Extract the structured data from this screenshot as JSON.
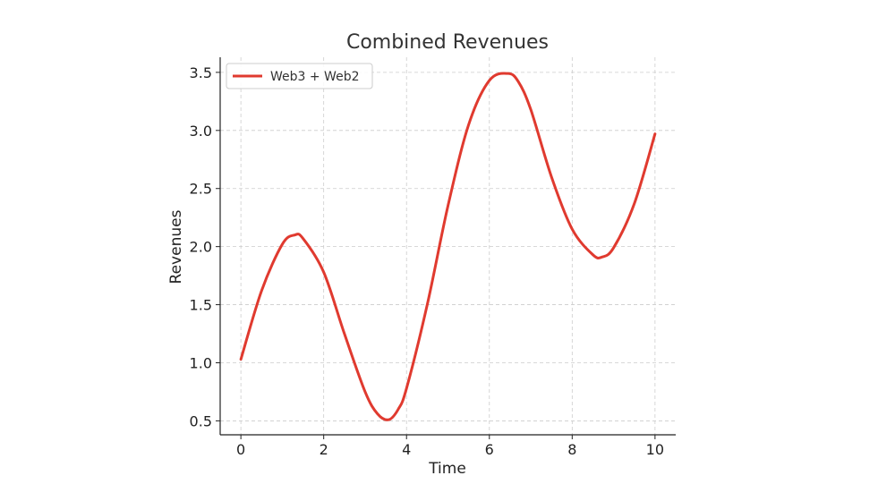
{
  "chart_data": {
    "type": "line",
    "title": "Combined Revenues",
    "xlabel": "Time",
    "ylabel": "Revenues",
    "xlim": [
      -0.5,
      10.5
    ],
    "ylim": [
      0.38,
      3.63
    ],
    "xticks": [
      0,
      2,
      4,
      6,
      8,
      10
    ],
    "yticks": [
      0.5,
      1.0,
      1.5,
      2.0,
      2.5,
      3.0,
      3.5
    ],
    "xtick_labels": [
      "0",
      "2",
      "4",
      "6",
      "8",
      "10"
    ],
    "ytick_labels": [
      "0.5",
      "1.0",
      "1.5",
      "2.0",
      "2.5",
      "3.0",
      "3.5"
    ],
    "grid": true,
    "legend_position": "top-left",
    "series": [
      {
        "name": "Web3 + Web2",
        "color": "#e03a2f",
        "x": [
          0,
          0.5,
          1.0,
          1.3,
          1.5,
          2.0,
          2.5,
          3.0,
          3.3,
          3.57,
          3.8,
          4.0,
          4.5,
          5.0,
          5.5,
          6.0,
          6.45,
          6.7,
          7.0,
          7.5,
          8.0,
          8.5,
          8.72,
          9.0,
          9.5,
          10.0
        ],
        "y": [
          1.03,
          1.62,
          2.02,
          2.1,
          2.07,
          1.78,
          1.25,
          0.75,
          0.56,
          0.51,
          0.6,
          0.78,
          1.5,
          2.35,
          3.05,
          3.43,
          3.49,
          3.42,
          3.18,
          2.6,
          2.15,
          1.93,
          1.91,
          1.99,
          2.37,
          2.97
        ]
      }
    ]
  }
}
